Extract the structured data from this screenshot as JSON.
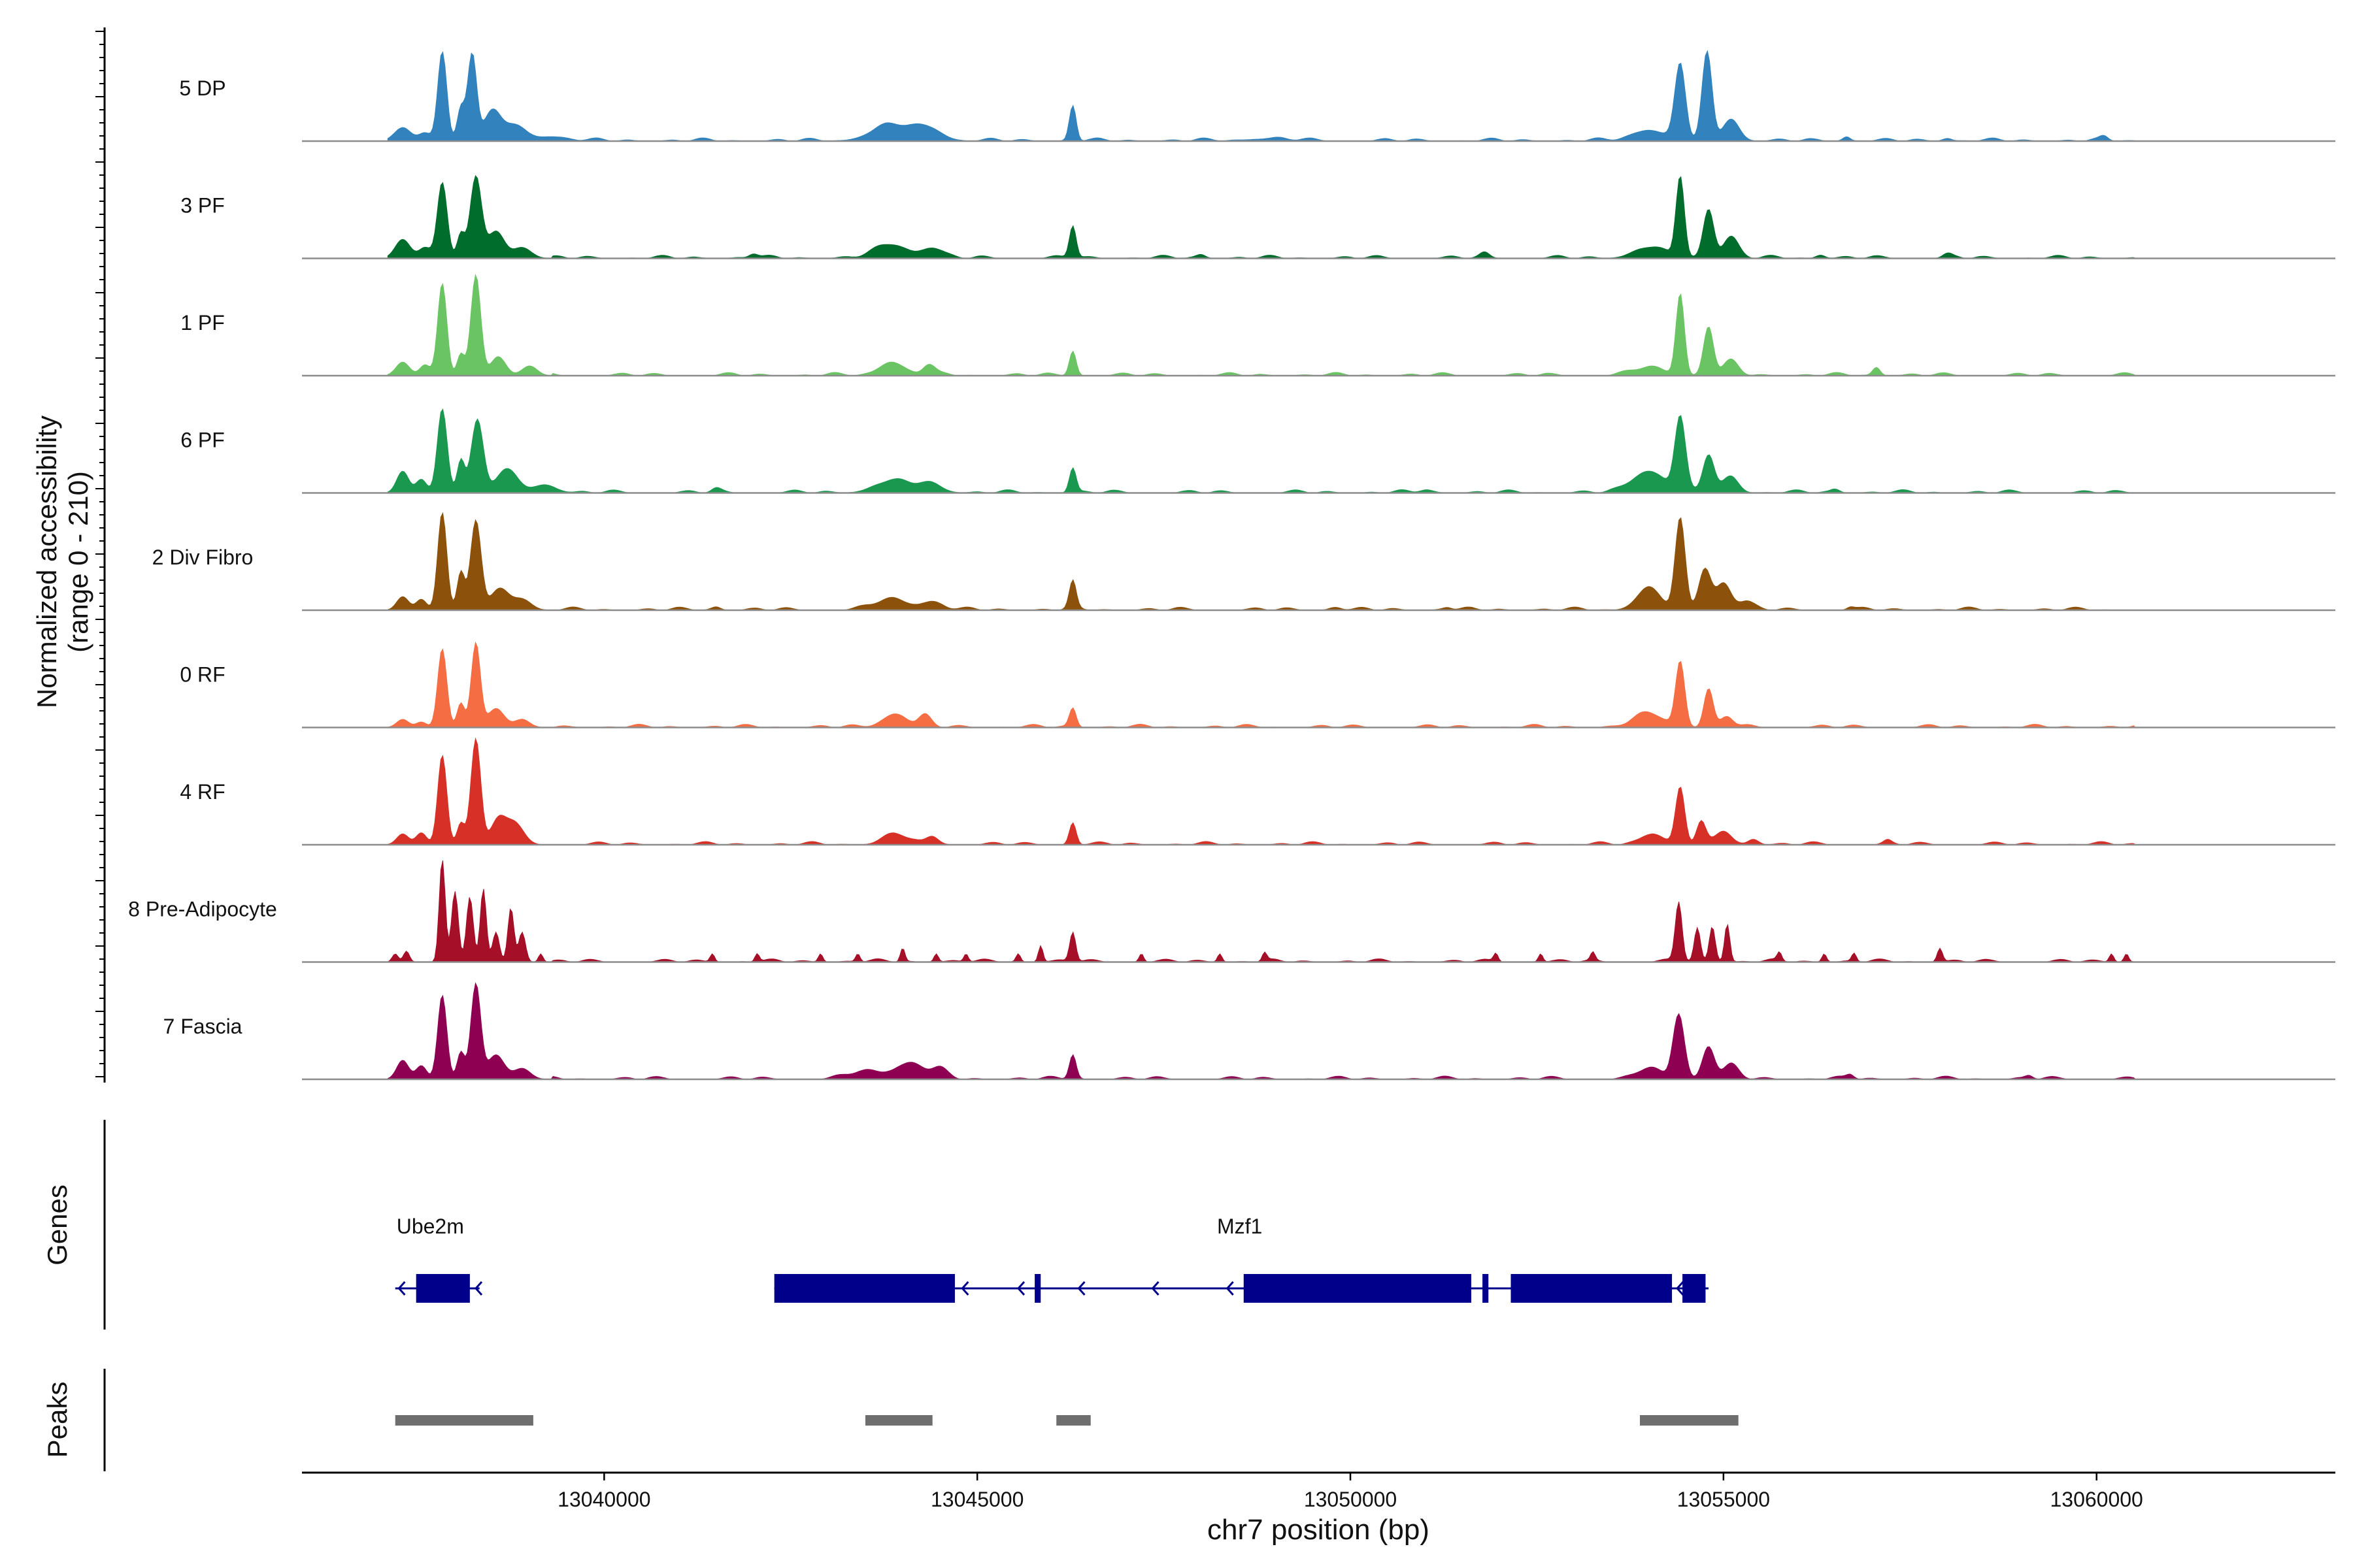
{
  "chart_data": {
    "type": "area",
    "title": "",
    "chromosome": "chr7",
    "xlabel": "chr7 position (bp)",
    "xlim": [
      13035950,
      13063200
    ],
    "x_ticks": [
      13040000,
      13045000,
      13050000,
      13055000,
      13060000
    ],
    "x_tick_labels": [
      "13040000",
      "13045000",
      "13050000",
      "13055000",
      "13060000"
    ],
    "ylabel_line1": "Normalized accessibility",
    "ylabel_line2": "(range 0 - 210)",
    "ylim": [
      0,
      210
    ],
    "genes_label": "Genes",
    "peaks_label": "Peaks",
    "tracks": [
      {
        "name": "5 DP",
        "color": "#3182BD",
        "peaks": [
          [
            13037300,
            25,
            110
          ],
          [
            13037600,
            15,
            80
          ],
          [
            13037830,
            165,
            60
          ],
          [
            13038080,
            60,
            50
          ],
          [
            13038230,
            160,
            60
          ],
          [
            13038500,
            55,
            110
          ],
          [
            13038800,
            30,
            150
          ],
          [
            13039300,
            8,
            200
          ],
          [
            13043850,
            30,
            260
          ],
          [
            13044350,
            22,
            180
          ],
          [
            13046280,
            65,
            45
          ],
          [
            13048900,
            4,
            300
          ],
          [
            13054000,
            20,
            220
          ],
          [
            13054420,
            140,
            70
          ],
          [
            13054780,
            160,
            65
          ],
          [
            13055100,
            40,
            110
          ],
          [
            13056650,
            8,
            50
          ],
          [
            13058000,
            5,
            60
          ],
          [
            13060100,
            6,
            50
          ]
        ]
      },
      {
        "name": "3 PF",
        "color": "#006D2C",
        "peaks": [
          [
            13037300,
            35,
            100
          ],
          [
            13037600,
            20,
            80
          ],
          [
            13037830,
            140,
            65
          ],
          [
            13038080,
            45,
            50
          ],
          [
            13038280,
            150,
            75
          ],
          [
            13038550,
            50,
            110
          ],
          [
            13038900,
            20,
            120
          ],
          [
            13042000,
            8,
            60
          ],
          [
            13043850,
            25,
            220
          ],
          [
            13044400,
            18,
            140
          ],
          [
            13046280,
            60,
            45
          ],
          [
            13048000,
            6,
            60
          ],
          [
            13051800,
            8,
            60
          ],
          [
            13054000,
            20,
            200
          ],
          [
            13054420,
            150,
            55
          ],
          [
            13054800,
            90,
            70
          ],
          [
            13055100,
            40,
            100
          ],
          [
            13056300,
            6,
            60
          ],
          [
            13058000,
            6,
            60
          ]
        ]
      },
      {
        "name": "1 PF",
        "color": "#6BC463",
        "peaks": [
          [
            13037300,
            25,
            90
          ],
          [
            13037600,
            20,
            70
          ],
          [
            13037830,
            170,
            60
          ],
          [
            13038080,
            40,
            50
          ],
          [
            13038280,
            185,
            65
          ],
          [
            13038580,
            35,
            100
          ],
          [
            13039000,
            18,
            100
          ],
          [
            13043850,
            25,
            160
          ],
          [
            13044350,
            20,
            80
          ],
          [
            13046280,
            45,
            45
          ],
          [
            13054000,
            15,
            200
          ],
          [
            13054420,
            150,
            55
          ],
          [
            13054800,
            90,
            65
          ],
          [
            13055100,
            25,
            100
          ],
          [
            13057050,
            15,
            50
          ]
        ]
      },
      {
        "name": "6 PF",
        "color": "#1A9850",
        "peaks": [
          [
            13037300,
            40,
            80
          ],
          [
            13037550,
            25,
            70
          ],
          [
            13037830,
            155,
            65
          ],
          [
            13038080,
            60,
            50
          ],
          [
            13038300,
            135,
            80
          ],
          [
            13038700,
            45,
            140
          ],
          [
            13039200,
            15,
            150
          ],
          [
            13041500,
            6,
            60
          ],
          [
            13043850,
            22,
            220
          ],
          [
            13044350,
            18,
            160
          ],
          [
            13046280,
            45,
            45
          ],
          [
            13051000,
            5,
            80
          ],
          [
            13054000,
            40,
            220
          ],
          [
            13054420,
            135,
            70
          ],
          [
            13054800,
            70,
            75
          ],
          [
            13055100,
            30,
            100
          ],
          [
            13056500,
            6,
            60
          ]
        ]
      },
      {
        "name": "2 Div Fibro",
        "color": "#8C510A",
        "peaks": [
          [
            13037300,
            25,
            80
          ],
          [
            13037550,
            20,
            70
          ],
          [
            13037830,
            180,
            60
          ],
          [
            13038080,
            70,
            50
          ],
          [
            13038280,
            165,
            70
          ],
          [
            13038600,
            40,
            120
          ],
          [
            13038900,
            20,
            120
          ],
          [
            13041500,
            6,
            60
          ],
          [
            13043850,
            20,
            220
          ],
          [
            13044400,
            15,
            140
          ],
          [
            13046280,
            50,
            45
          ],
          [
            13049800,
            5,
            80
          ],
          [
            13051300,
            5,
            60
          ],
          [
            13054000,
            40,
            160
          ],
          [
            13054420,
            165,
            65
          ],
          [
            13054750,
            75,
            80
          ],
          [
            13055000,
            50,
            100
          ],
          [
            13055300,
            15,
            100
          ],
          [
            13056700,
            5,
            50
          ]
        ]
      },
      {
        "name": "0 RF",
        "color": "#F46D43",
        "peaks": [
          [
            13037300,
            15,
            80
          ],
          [
            13037550,
            10,
            70
          ],
          [
            13037830,
            145,
            60
          ],
          [
            13038080,
            45,
            50
          ],
          [
            13038280,
            155,
            60
          ],
          [
            13038550,
            35,
            110
          ],
          [
            13038900,
            15,
            100
          ],
          [
            13043900,
            25,
            160
          ],
          [
            13044300,
            20,
            80
          ],
          [
            13046280,
            35,
            45
          ],
          [
            13054000,
            25,
            200
          ],
          [
            13054420,
            120,
            60
          ],
          [
            13054800,
            70,
            60
          ],
          [
            13055050,
            20,
            80
          ]
        ]
      },
      {
        "name": "4 RF",
        "color": "#D73027",
        "peaks": [
          [
            13037300,
            20,
            80
          ],
          [
            13037550,
            22,
            70
          ],
          [
            13037830,
            165,
            60
          ],
          [
            13038080,
            40,
            50
          ],
          [
            13038280,
            195,
            65
          ],
          [
            13038580,
            45,
            100
          ],
          [
            13038800,
            40,
            120
          ],
          [
            13043900,
            20,
            160
          ],
          [
            13044400,
            15,
            80
          ],
          [
            13046280,
            40,
            45
          ],
          [
            13054050,
            20,
            150
          ],
          [
            13054420,
            105,
            60
          ],
          [
            13054700,
            40,
            60
          ],
          [
            13055000,
            25,
            100
          ],
          [
            13055400,
            10,
            70
          ],
          [
            13057200,
            6,
            50
          ]
        ]
      },
      {
        "name": "8 Pre-Adipocyte",
        "color": "#A50F27",
        "peaks": [
          [
            13037200,
            15,
            40
          ],
          [
            13037350,
            20,
            40
          ],
          [
            13037830,
            190,
            40
          ],
          [
            13038000,
            130,
            45
          ],
          [
            13038200,
            120,
            45
          ],
          [
            13038380,
            135,
            40
          ],
          [
            13038550,
            55,
            45
          ],
          [
            13038750,
            100,
            40
          ],
          [
            13038900,
            55,
            45
          ],
          [
            13039150,
            15,
            30
          ],
          [
            13041450,
            15,
            30
          ],
          [
            13042050,
            15,
            30
          ],
          [
            13042900,
            15,
            30
          ],
          [
            13043400,
            15,
            30
          ],
          [
            13044000,
            25,
            30
          ],
          [
            13044450,
            15,
            30
          ],
          [
            13044850,
            15,
            30
          ],
          [
            13045550,
            15,
            30
          ],
          [
            13045850,
            30,
            30
          ],
          [
            13046280,
            55,
            40
          ],
          [
            13047200,
            15,
            30
          ],
          [
            13048250,
            15,
            30
          ],
          [
            13048850,
            15,
            30
          ],
          [
            13051950,
            15,
            30
          ],
          [
            13052550,
            15,
            30
          ],
          [
            13053250,
            15,
            30
          ],
          [
            13054400,
            110,
            45
          ],
          [
            13054650,
            60,
            40
          ],
          [
            13054850,
            65,
            40
          ],
          [
            13055050,
            70,
            35
          ],
          [
            13055750,
            15,
            30
          ],
          [
            13056350,
            15,
            30
          ],
          [
            13056750,
            15,
            30
          ],
          [
            13057900,
            25,
            35
          ],
          [
            13060200,
            15,
            30
          ],
          [
            13060400,
            15,
            30
          ]
        ]
      },
      {
        "name": "7 Fascia",
        "color": "#8E0152",
        "peaks": [
          [
            13037300,
            35,
            80
          ],
          [
            13037550,
            25,
            70
          ],
          [
            13037830,
            155,
            60
          ],
          [
            13038080,
            50,
            50
          ],
          [
            13038280,
            175,
            65
          ],
          [
            13038550,
            45,
            110
          ],
          [
            13038900,
            20,
            110
          ],
          [
            13043500,
            15,
            200
          ],
          [
            13044100,
            30,
            200
          ],
          [
            13044500,
            15,
            100
          ],
          [
            13046280,
            45,
            45
          ],
          [
            13054000,
            20,
            150
          ],
          [
            13054400,
            120,
            75
          ],
          [
            13054800,
            60,
            80
          ],
          [
            13055100,
            25,
            100
          ],
          [
            13056700,
            8,
            50
          ],
          [
            13059100,
            6,
            50
          ]
        ]
      }
    ],
    "genes": [
      {
        "name": "Ube2m",
        "start": 13037200,
        "end": 13038330,
        "strand": "-",
        "exons": [
          [
            13037480,
            13038200
          ]
        ]
      },
      {
        "name": "Mzf1",
        "start": 13042280,
        "end": 13054800,
        "strand": "-",
        "exons": [
          [
            13042280,
            13044700
          ],
          [
            13045770,
            13045850
          ],
          [
            13048570,
            13051620
          ],
          [
            13051770,
            13051850
          ],
          [
            13052150,
            13054310
          ],
          [
            13054450,
            13054760
          ]
        ]
      }
    ],
    "peaks": [
      [
        13037200,
        13039050
      ],
      [
        13043500,
        13044400
      ],
      [
        13046060,
        13046520
      ],
      [
        13053880,
        13055200
      ]
    ]
  }
}
